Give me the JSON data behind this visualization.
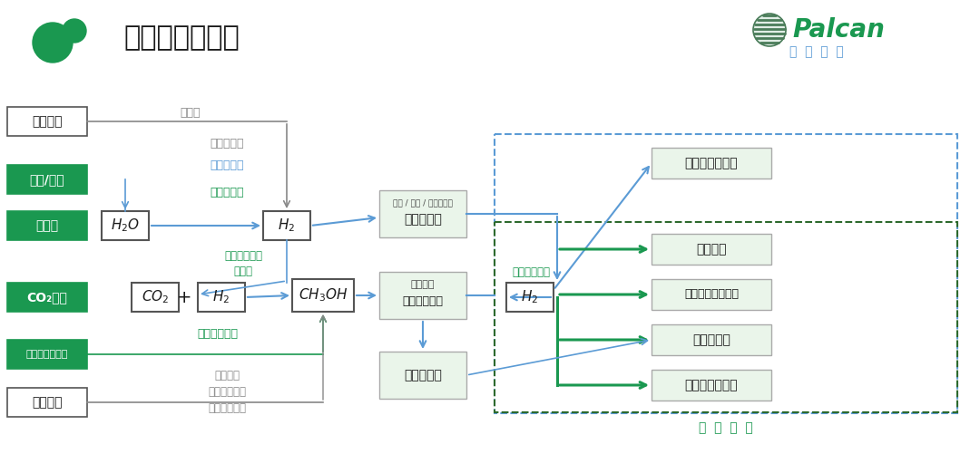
{
  "title": "氢能产业全景图",
  "bg_color": "#ffffff",
  "green_dark": "#1a9850",
  "green_light_bg": "#e8f5e9",
  "blue_arrow": "#5b9bd5",
  "gray_text": "#888888",
  "blue_text": "#5b9bd5",
  "green_text": "#1a9850",
  "black_text": "#1a1a1a",
  "dashed_blue": "#5b9bd5",
  "dashed_green": "#2d6a2d",
  "palcan_text": "Palcan",
  "gaoya_text": "高  压  氢  罐",
  "boqing_text": "博  氢  产  品"
}
